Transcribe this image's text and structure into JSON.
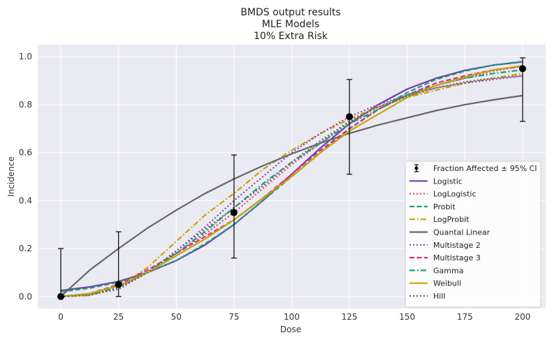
{
  "chart_data": {
    "type": "line",
    "title": [
      "BMDS output results",
      "MLE Models",
      "10% Extra Risk"
    ],
    "xlabel": "Dose",
    "ylabel": "Incidence",
    "xlim": [
      -10,
      210
    ],
    "ylim": [
      -0.05,
      1.05
    ],
    "xticks": [
      0,
      25,
      50,
      75,
      100,
      125,
      150,
      175,
      200
    ],
    "yticks": [
      0.0,
      0.2,
      0.4,
      0.6,
      0.8,
      1.0
    ],
    "xtick_labels": [
      "0",
      "25",
      "50",
      "75",
      "100",
      "125",
      "150",
      "175",
      "200"
    ],
    "ytick_labels": [
      "0.0",
      "0.2",
      "0.4",
      "0.6",
      "0.8",
      "1.0"
    ],
    "grid": true,
    "legend_position": "lower-right",
    "observed": {
      "name": "Fraction Affected ± 95% CI",
      "color": "#000000",
      "points": [
        {
          "x": 0,
          "y": 0.0,
          "lower": 0.0,
          "upper": 0.2
        },
        {
          "x": 25,
          "y": 0.05,
          "lower": 0.0,
          "upper": 0.27
        },
        {
          "x": 75,
          "y": 0.35,
          "lower": 0.16,
          "upper": 0.59
        },
        {
          "x": 125,
          "y": 0.75,
          "lower": 0.51,
          "upper": 0.905
        },
        {
          "x": 200,
          "y": 0.95,
          "lower": 0.73,
          "upper": 0.995
        }
      ]
    },
    "x": [
      0,
      12.5,
      25,
      37.5,
      50,
      62.5,
      75,
      87.5,
      100,
      112.5,
      125,
      137.5,
      150,
      162.5,
      175,
      187.5,
      200
    ],
    "series": [
      {
        "name": "Logistic",
        "color": "#6f3db0",
        "dash": "solid",
        "values": [
          0.025,
          0.04,
          0.063,
          0.1,
          0.15,
          0.215,
          0.3,
          0.4,
          0.51,
          0.62,
          0.72,
          0.8,
          0.865,
          0.91,
          0.943,
          0.965,
          0.978
        ]
      },
      {
        "name": "LogLogistic",
        "color": "#e0447e",
        "dash": "dot",
        "values": [
          0.0,
          0.01,
          0.04,
          0.1,
          0.18,
          0.26,
          0.35,
          0.45,
          0.55,
          0.64,
          0.73,
          0.79,
          0.84,
          0.88,
          0.91,
          0.94,
          0.96
        ]
      },
      {
        "name": "Probit",
        "color": "#1b9e77",
        "dash": "dash",
        "values": [
          0.02,
          0.035,
          0.06,
          0.1,
          0.15,
          0.22,
          0.3,
          0.4,
          0.5,
          0.6,
          0.7,
          0.78,
          0.85,
          0.905,
          0.94,
          0.965,
          0.98
        ]
      },
      {
        "name": "LogProbit",
        "color": "#c7a400",
        "dash": "dashdot",
        "values": [
          0.0,
          0.005,
          0.04,
          0.12,
          0.23,
          0.34,
          0.43,
          0.53,
          0.61,
          0.68,
          0.74,
          0.79,
          0.83,
          0.86,
          0.89,
          0.91,
          0.93
        ]
      },
      {
        "name": "Quantal Linear",
        "color": "#666666",
        "dash": "solid",
        "values": [
          0.0,
          0.11,
          0.2,
          0.285,
          0.36,
          0.43,
          0.49,
          0.545,
          0.595,
          0.64,
          0.68,
          0.715,
          0.745,
          0.775,
          0.8,
          0.82,
          0.838
        ]
      },
      {
        "name": "Multistage 2",
        "color": "#8e44ad",
        "dash": "dot",
        "values": [
          0.0,
          0.007,
          0.03,
          0.1,
          0.19,
          0.29,
          0.4,
          0.5,
          0.6,
          0.68,
          0.75,
          0.8,
          0.84,
          0.87,
          0.89,
          0.905,
          0.92
        ]
      },
      {
        "name": "Multistage 3",
        "color": "#d62d85",
        "dash": "dash",
        "values": [
          0.0,
          0.012,
          0.05,
          0.11,
          0.18,
          0.25,
          0.32,
          0.41,
          0.51,
          0.61,
          0.7,
          0.78,
          0.84,
          0.89,
          0.92,
          0.945,
          0.96
        ]
      },
      {
        "name": "Gamma",
        "color": "#1b9e77",
        "dash": "dashdot",
        "values": [
          0.0,
          0.01,
          0.04,
          0.1,
          0.18,
          0.27,
          0.37,
          0.47,
          0.56,
          0.64,
          0.72,
          0.78,
          0.84,
          0.88,
          0.91,
          0.93,
          0.945
        ]
      },
      {
        "name": "Weibull",
        "color": "#c7a400",
        "dash": "solid",
        "values": [
          0.0,
          0.012,
          0.045,
          0.1,
          0.17,
          0.24,
          0.32,
          0.41,
          0.5,
          0.6,
          0.69,
          0.76,
          0.83,
          0.88,
          0.915,
          0.945,
          0.962
        ]
      },
      {
        "name": "Hill",
        "color": "#666666",
        "dash": "dot",
        "values": [
          0.0,
          0.005,
          0.035,
          0.1,
          0.19,
          0.28,
          0.37,
          0.46,
          0.56,
          0.65,
          0.73,
          0.79,
          0.835,
          0.87,
          0.895,
          0.91,
          0.92
        ]
      }
    ]
  }
}
